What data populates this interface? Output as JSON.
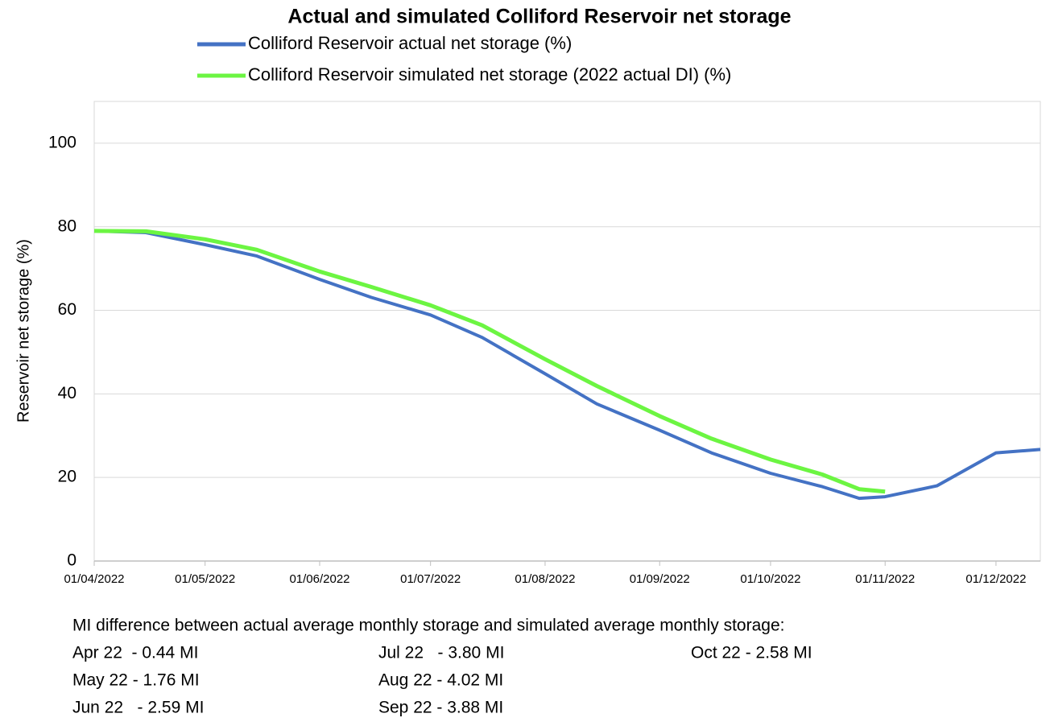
{
  "chart_data": {
    "type": "line",
    "title": "Actual and simulated Colliford Reservoir net storage",
    "y_label": "Reservoir net storage (%)",
    "x": [
      "01/04/2022",
      "15/04/2022",
      "01/05/2022",
      "15/05/2022",
      "01/06/2022",
      "15/06/2022",
      "01/07/2022",
      "15/07/2022",
      "01/08/2022",
      "15/08/2022",
      "01/09/2022",
      "15/09/2022",
      "01/10/2022",
      "15/10/2022",
      "25/10/2022",
      "01/11/2022",
      "15/11/2022",
      "01/12/2022",
      "13/12/2022"
    ],
    "series": [
      {
        "name": "Colliford Reservoir actual net storage (%)",
        "color": "#4472c4",
        "values": [
          79,
          78.6,
          75.7,
          73,
          67.4,
          63.1,
          58.9,
          53.5,
          44.8,
          37.6,
          31.3,
          25.9,
          21.0,
          17.8,
          15.0,
          15.4,
          18,
          25.9,
          26.7
        ]
      },
      {
        "name": "Colliford Reservoir simulated net storage (2022 actual DI) (%)",
        "color": "#6cf542",
        "values": [
          79,
          78.9,
          77,
          74.5,
          69.3,
          65.6,
          61.2,
          56.4,
          48.3,
          41.9,
          34.7,
          29.3,
          24.3,
          20.7,
          17.2,
          16.6,
          null,
          null,
          null
        ]
      }
    ],
    "xlim": [
      "01/04/2022",
      "13/12/2022"
    ],
    "xticks": [
      "01/04/2022",
      "01/05/2022",
      "01/06/2022",
      "01/07/2022",
      "01/08/2022",
      "01/09/2022",
      "01/10/2022",
      "01/11/2022",
      "01/12/2022"
    ],
    "ylim": [
      0,
      110
    ],
    "yticks": [
      0,
      20,
      40,
      60,
      80,
      100
    ],
    "grid": true
  },
  "notes": {
    "heading": "MI difference between actual average monthly storage and simulated average monthly storage:",
    "items": [
      "Apr 22  - 0.44 MI",
      "May 22 - 1.76 MI",
      "Jun 22   - 2.59 MI",
      "Jul 22   - 3.80 MI",
      "Aug 22 - 4.02 MI",
      "Sep 22 - 3.88 MI",
      "Oct 22 - 2.58 MI"
    ]
  }
}
